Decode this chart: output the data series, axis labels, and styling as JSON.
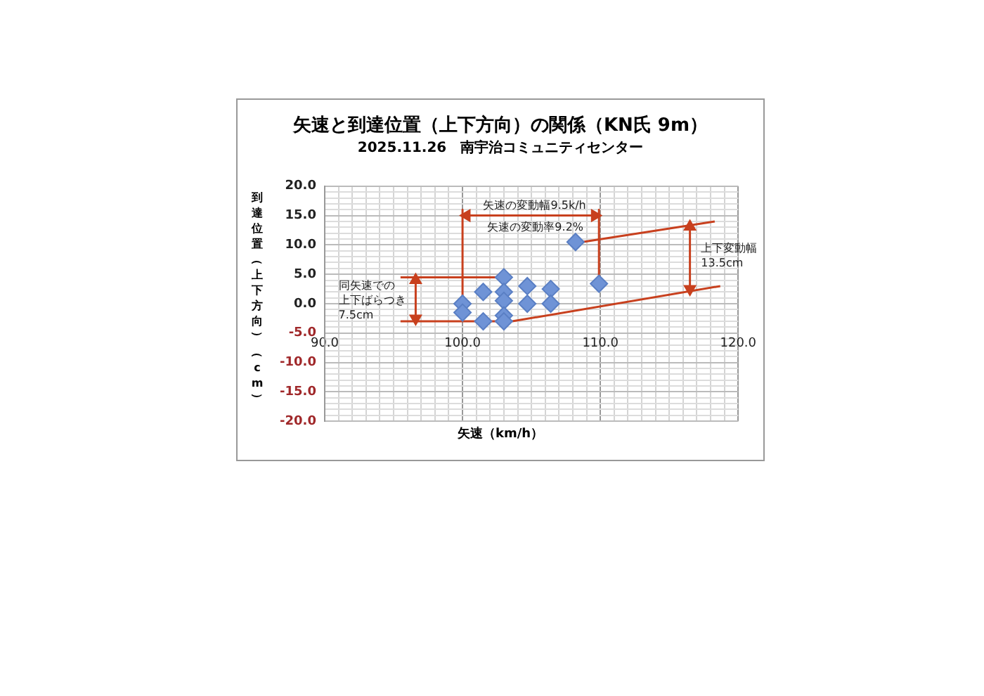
{
  "chart_data": {
    "type": "scatter",
    "title": "矢速と到達位置（上下方向）の関係（KN氏 9m）",
    "subtitle": "2025.11.26　南宇治コミュニティセンター",
    "xlabel": "矢速（km/h）",
    "ylabel": "到達位置（上下方向）（cm）",
    "grid": true,
    "xlim": [
      90,
      120
    ],
    "ylim": [
      -20,
      20
    ],
    "xticks": [
      {
        "value": 90,
        "label": "90.0"
      },
      {
        "value": 91,
        "label": null
      },
      {
        "value": 92,
        "label": null
      },
      {
        "value": 93,
        "label": null
      },
      {
        "value": 94,
        "label": null
      },
      {
        "value": 95,
        "label": null
      },
      {
        "value": 96,
        "label": null
      },
      {
        "value": 97,
        "label": null
      },
      {
        "value": 98,
        "label": null
      },
      {
        "value": 99,
        "label": null
      },
      {
        "value": 100,
        "label": "100.0"
      },
      {
        "value": 101,
        "label": null
      },
      {
        "value": 102,
        "label": null
      },
      {
        "value": 103,
        "label": null
      },
      {
        "value": 104,
        "label": null
      },
      {
        "value": 105,
        "label": null
      },
      {
        "value": 106,
        "label": null
      },
      {
        "value": 107,
        "label": null
      },
      {
        "value": 108,
        "label": null
      },
      {
        "value": 109,
        "label": null
      },
      {
        "value": 110,
        "label": "110.0"
      },
      {
        "value": 111,
        "label": null
      },
      {
        "value": 112,
        "label": null
      },
      {
        "value": 113,
        "label": null
      },
      {
        "value": 114,
        "label": null
      },
      {
        "value": 115,
        "label": null
      },
      {
        "value": 116,
        "label": null
      },
      {
        "value": 117,
        "label": null
      },
      {
        "value": 118,
        "label": null
      },
      {
        "value": 119,
        "label": null
      },
      {
        "value": 120,
        "label": "120.0"
      }
    ],
    "yticks": [
      {
        "value": -20,
        "label": "-20.0"
      },
      {
        "value": -19,
        "label": null
      },
      {
        "value": -18,
        "label": null
      },
      {
        "value": -17,
        "label": null
      },
      {
        "value": -16,
        "label": null
      },
      {
        "value": -15,
        "label": "-15.0"
      },
      {
        "value": -14,
        "label": null
      },
      {
        "value": -13,
        "label": null
      },
      {
        "value": -12,
        "label": null
      },
      {
        "value": -11,
        "label": null
      },
      {
        "value": -10,
        "label": "-10.0"
      },
      {
        "value": -9,
        "label": null
      },
      {
        "value": -8,
        "label": null
      },
      {
        "value": -7,
        "label": null
      },
      {
        "value": -6,
        "label": null
      },
      {
        "value": -5,
        "label": "-5.0"
      },
      {
        "value": -4,
        "label": null
      },
      {
        "value": -3,
        "label": null
      },
      {
        "value": -2,
        "label": null
      },
      {
        "value": -1,
        "label": null
      },
      {
        "value": 0,
        "label": "0.0"
      },
      {
        "value": 1,
        "label": null
      },
      {
        "value": 2,
        "label": null
      },
      {
        "value": 3,
        "label": null
      },
      {
        "value": 4,
        "label": null
      },
      {
        "value": 5,
        "label": "5.0"
      },
      {
        "value": 6,
        "label": null
      },
      {
        "value": 7,
        "label": null
      },
      {
        "value": 8,
        "label": null
      },
      {
        "value": 9,
        "label": null
      },
      {
        "value": 10,
        "label": "10.0"
      },
      {
        "value": 11,
        "label": null
      },
      {
        "value": 12,
        "label": null
      },
      {
        "value": 13,
        "label": null
      },
      {
        "value": 14,
        "label": null
      },
      {
        "value": 15,
        "label": "15.0"
      },
      {
        "value": 16,
        "label": null
      },
      {
        "value": 17,
        "label": null
      },
      {
        "value": 18,
        "label": null
      },
      {
        "value": 19,
        "label": null
      },
      {
        "value": 20,
        "label": "20.0"
      }
    ],
    "series": [
      {
        "color": "#6f93d6",
        "marker": "diamond",
        "x": [
          100,
          100,
          101.5,
          101.5,
          103,
          103,
          103,
          103,
          103,
          104.7,
          104.7,
          106.4,
          106.4,
          108.2,
          109.9
        ],
        "values": [
          0,
          -1.5,
          2,
          -3,
          4.5,
          2,
          0.5,
          -2,
          -3,
          3,
          0,
          2.5,
          0,
          10.5,
          3.4
        ]
      },
      {
        "type": "line",
        "color": "#c8401e",
        "marker": "none",
        "x": [
          95.5,
          103
        ],
        "values": [
          4.5,
          4.5
        ]
      },
      {
        "type": "line",
        "color": "#c8401e",
        "marker": "none",
        "x": [
          95.5,
          103
        ],
        "values": [
          -3,
          -3
        ]
      },
      {
        "type": "line",
        "color": "#c8401e",
        "marker": "triangle",
        "x": [
          96.6,
          96.6
        ],
        "values": [
          4,
          -2.5
        ]
      },
      {
        "type": "line",
        "color": "#c8401e",
        "marker": "none",
        "x": [
          100,
          100
        ],
        "values": [
          16,
          0
        ]
      },
      {
        "type": "line",
        "color": "#c8401e",
        "marker": "none",
        "x": [
          109.9,
          109.9
        ],
        "values": [
          16,
          3.4
        ]
      },
      {
        "type": "line",
        "color": "#c8401e",
        "marker": "triangle",
        "x": [
          100.3,
          109.6
        ],
        "values": [
          15,
          15
        ]
      },
      {
        "type": "line",
        "color": "#c8401e",
        "marker": "none",
        "x": [
          103.6,
          118.7
        ],
        "values": [
          -3,
          3
        ]
      },
      {
        "type": "line",
        "color": "#c8401e",
        "marker": "none",
        "x": [
          108.7,
          118.3
        ],
        "values": [
          10.5,
          14
        ]
      },
      {
        "type": "line",
        "color": "#c8401e",
        "marker": "triangle",
        "x": [
          116.5,
          116.5
        ],
        "values": [
          13.1,
          2.5
        ]
      }
    ],
    "annotations": [
      "矢速の変動幅9.5k/h",
      "矢速の変動率9.2%",
      "上下変動幅",
      "13.5cm",
      "同矢速での",
      "上下ばらつき",
      "7.5cm"
    ]
  }
}
